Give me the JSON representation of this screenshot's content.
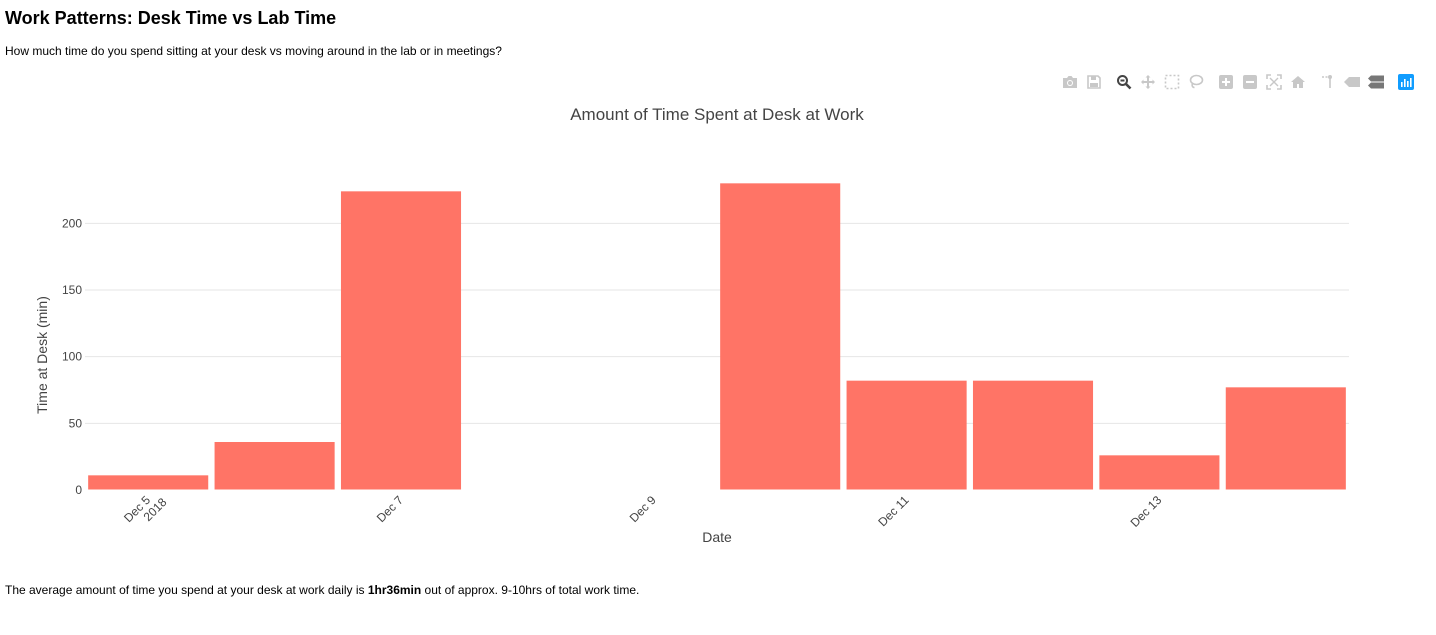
{
  "page": {
    "title": "Work Patterns: Desk Time vs Lab Time",
    "subtitle": "How much time do you spend sitting at your desk vs moving around in the lab or in meetings?",
    "footer_prefix": "The average amount of time you spend at your desk at work daily is ",
    "footer_value": "1hr36min",
    "footer_suffix": " out of approx. 9-10hrs of total work time."
  },
  "modebar": {
    "icons": [
      "camera-icon",
      "save-icon",
      "zoom-icon",
      "pan-icon",
      "box-select-icon",
      "lasso-select-icon",
      "zoom-in-icon",
      "zoom-out-icon",
      "autoscale-icon",
      "reset-axes-icon",
      "spike-lines-icon",
      "hover-closest-icon",
      "hover-compare-icon",
      "plotly-logo-icon"
    ],
    "active_color": "#444444",
    "inactive_color": "#c8c8c8",
    "brand_color": "#119dff"
  },
  "chart_data": {
    "type": "bar",
    "title": "Amount of Time Spent at Desk at Work",
    "xlabel": "Date",
    "ylabel": "Time at Desk (min)",
    "x": [
      "2018-12-05",
      "2018-12-06",
      "2018-12-07",
      "2018-12-08",
      "2018-12-09",
      "2018-12-10",
      "2018-12-11",
      "2018-12-12",
      "2018-12-13",
      "2018-12-14"
    ],
    "values": [
      11,
      36,
      224,
      null,
      null,
      230,
      82,
      82,
      26,
      77
    ],
    "ylim": [
      0,
      240
    ],
    "yticks": [
      0,
      50,
      100,
      150,
      200
    ],
    "xticks": [
      {
        "date": "2018-12-05",
        "label": "Dec 5",
        "sublabel": "2018"
      },
      {
        "date": "2018-12-07",
        "label": "Dec 7",
        "sublabel": ""
      },
      {
        "date": "2018-12-09",
        "label": "Dec 9",
        "sublabel": ""
      },
      {
        "date": "2018-12-11",
        "label": "Dec 11",
        "sublabel": ""
      },
      {
        "date": "2018-12-13",
        "label": "Dec 13",
        "sublabel": ""
      }
    ],
    "bar_color": "#ff7466",
    "grid": true,
    "legend": "none"
  }
}
